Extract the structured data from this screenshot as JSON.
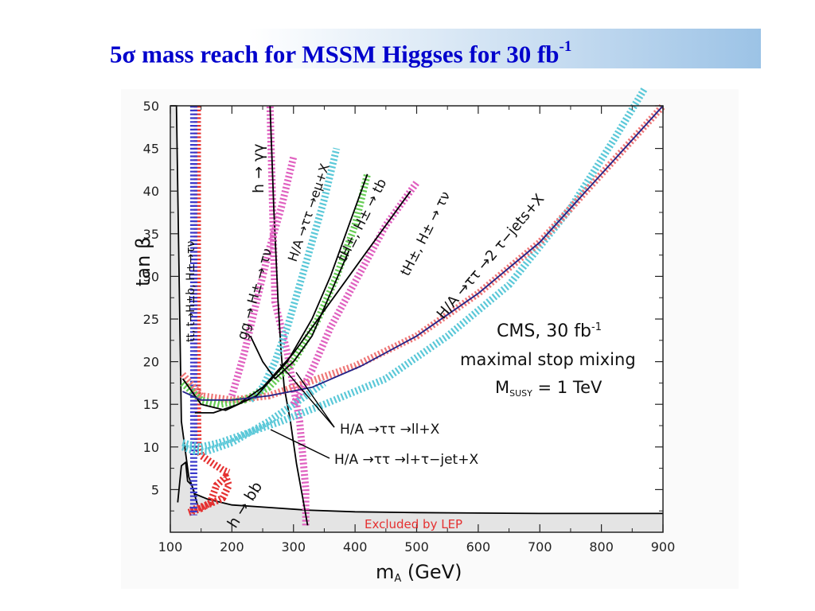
{
  "title": {
    "prefix": "5",
    "sigma": "σ",
    "main": " mass reach for MSSM Higgses for 30 fb",
    "sup": "-1"
  },
  "chart_data": {
    "type": "line",
    "title": "",
    "xlabel": "mA (GeV)",
    "ylabel": "tan β",
    "xlim": [
      100,
      900
    ],
    "ylim": [
      0,
      50
    ],
    "x_ticks": [
      "100",
      "200",
      "300",
      "400",
      "500",
      "600",
      "700",
      "800",
      "900"
    ],
    "y_ticks": [
      "5",
      "10",
      "15",
      "20",
      "25",
      "30",
      "35",
      "40",
      "45",
      "50"
    ],
    "grid": false,
    "legend_box": {
      "line1": "CMS, 30 fb",
      "line1_sup": "-1",
      "line2": "maximal stop mixing",
      "line3_a": "M",
      "line3_sub": "SUSY",
      "line3_b": " = 1 TeV"
    },
    "excluded_label": "Excluded by LEP",
    "annotations": {
      "hgg": "h → γγ",
      "hbb": "h → bb",
      "tt_hb": "tt, t→H±b, H±→τν",
      "gg_htaunu": "gg → H± → τν",
      "ha_emu": "H/A →ττ →eμ+X",
      "thtb": "tH±, H± → tb",
      "thtaunu": "tH±, H± → τν",
      "ha_2tau": "H/A →ττ →2 τ−jets+X",
      "ha_ll": "H/A  →ττ →ll+X",
      "ha_ltau": "H/A  →ττ →l+τ−jet+X"
    },
    "series": [
      {
        "key": "lep",
        "color": "#000000",
        "style": "solid",
        "x": [
          100,
          110,
          118,
          130,
          140,
          160,
          200,
          260,
          320,
          400,
          500,
          600,
          700,
          800,
          900
        ],
        "y": [
          50,
          50,
          13,
          6.5,
          4.5,
          3.9,
          3.2,
          2.9,
          2.6,
          2.4,
          2.3,
          2.25,
          2.2,
          2.2,
          2.2
        ]
      },
      {
        "key": "lep2",
        "color": "#000000",
        "style": "solid",
        "x": [
          112,
          118,
          125,
          128,
          135,
          145
        ],
        "y": [
          3.5,
          7.8,
          8.2,
          6,
          5.5,
          3
        ]
      },
      {
        "key": "hbb",
        "color": "#e53030",
        "style": "hatched",
        "x": [
          130,
          150,
          165,
          175,
          190,
          195,
          185,
          160,
          130
        ],
        "y": [
          2.3,
          2.8,
          3.5,
          5.5,
          6.5,
          5.5,
          4,
          3.2,
          2.5
        ]
      },
      {
        "key": "ttbar",
        "color": "#e53030",
        "style": "hatched",
        "x": [
          144,
          144,
          145,
          150,
          160,
          170,
          185,
          195
        ],
        "y": [
          50,
          15,
          10,
          9,
          8.5,
          8,
          7.3,
          7
        ]
      },
      {
        "key": "ttbar_blue",
        "color": "#3a3acc",
        "style": "hatched",
        "x": [
          138,
          138
        ],
        "y": [
          50,
          2
        ]
      },
      {
        "key": "hgg",
        "color": "#e060c0",
        "style": "hatched",
        "x": [
          320,
          320,
          315,
          310,
          300,
          290,
          270,
          262
        ],
        "y": [
          0.8,
          5,
          9,
          13,
          17,
          21,
          27,
          50
        ]
      },
      {
        "key": "hgg_black",
        "color": "#000000",
        "style": "solid",
        "x": [
          323,
          315,
          305,
          295,
          285,
          280,
          275,
          268,
          262
        ],
        "y": [
          0.8,
          4,
          8,
          13,
          17,
          21,
          27,
          38,
          50
        ]
      },
      {
        "key": "tau2jets",
        "color": "#5ac8d8",
        "style": "hatched",
        "x": [
          120,
          130,
          150,
          180,
          220,
          280,
          350,
          450,
          550,
          650,
          750,
          820,
          870
        ],
        "y": [
          10.5,
          10.3,
          10,
          10.5,
          11.5,
          13,
          15,
          18,
          23,
          29,
          38,
          46,
          52
        ]
      },
      {
        "key": "ha_lep",
        "color": "#5ac8d8",
        "style": "hatched",
        "x": [
          120,
          140,
          160,
          200,
          260,
          320,
          350
        ],
        "y": [
          10,
          9.5,
          9.5,
          10.5,
          13,
          16,
          17.5
        ]
      },
      {
        "key": "ha_ll_curve",
        "color": "#ee7777",
        "style": "hatched",
        "x": [
          120,
          150,
          200,
          260,
          320,
          400,
          500,
          600,
          700,
          800,
          900
        ],
        "y": [
          18.5,
          16,
          15.5,
          16,
          17.5,
          19.5,
          23,
          28,
          34,
          42,
          50
        ]
      },
      {
        "key": "gg_htaunu",
        "color": "#e060c0",
        "style": "hatched",
        "x": [
          200,
          220,
          240,
          260,
          280,
          300
        ],
        "y": [
          16,
          21,
          27,
          33,
          38,
          44
        ]
      },
      {
        "key": "ha_emu_curve",
        "color": "#5ac8d8",
        "style": "hatched",
        "x": [
          230,
          250,
          270,
          290,
          310,
          330,
          350,
          370
        ],
        "y": [
          15.5,
          17,
          20,
          24,
          29,
          34,
          39,
          45
        ]
      },
      {
        "key": "thtb",
        "color": "#e060c0",
        "style": "hatched",
        "x": [
          300,
          330,
          360,
          390,
          420,
          450,
          480,
          500
        ],
        "y": [
          15,
          19,
          24,
          28,
          32,
          36,
          39,
          41
        ]
      },
      {
        "key": "green_curve",
        "color": "#66cc55",
        "style": "hatched",
        "x": [
          120,
          150,
          180,
          220,
          260,
          300,
          340,
          370,
          400,
          420
        ],
        "y": [
          17.5,
          15.5,
          15,
          15.5,
          17,
          20,
          25,
          30,
          36,
          42
        ]
      },
      {
        "key": "black1",
        "color": "#000000",
        "style": "solid",
        "x": [
          120,
          150,
          190,
          240,
          290,
          330,
          360,
          390,
          420
        ],
        "y": [
          18,
          15,
          14.3,
          16,
          20,
          25,
          30,
          36,
          42
        ]
      },
      {
        "key": "black2",
        "color": "#000000",
        "style": "solid",
        "x": [
          140,
          170,
          210,
          250,
          300,
          350,
          400,
          450,
          490
        ],
        "y": [
          14,
          14,
          15,
          17,
          21,
          26,
          31,
          36,
          40
        ]
      },
      {
        "key": "black3",
        "color": "#000000",
        "style": "solid",
        "x": [
          230,
          250,
          270,
          300,
          330,
          360,
          390
        ],
        "y": [
          23,
          20,
          18,
          20,
          23,
          28,
          33
        ]
      },
      {
        "key": "blue_outline",
        "color": "#222288",
        "style": "solid",
        "x": [
          120,
          150,
          200,
          260,
          330,
          410,
          500,
          600,
          700,
          800,
          900
        ],
        "y": [
          16.5,
          15.5,
          15.5,
          16,
          17,
          19.5,
          23,
          28,
          34,
          42,
          50
        ]
      }
    ]
  }
}
